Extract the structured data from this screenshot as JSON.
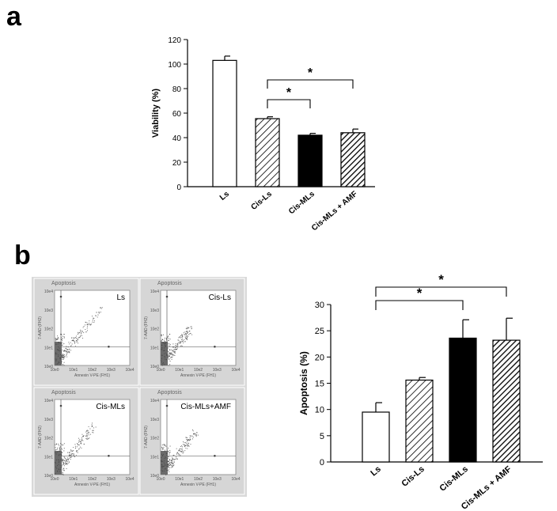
{
  "panel_labels": {
    "a": "a",
    "b": "b"
  },
  "colors": {
    "axis": "#000000",
    "facs_background": "#d9d9d9",
    "facs_frame": "#ffffff",
    "dots": "#555555"
  },
  "chart_data": [
    {
      "id": "viability",
      "type": "bar",
      "categories": [
        "Ls",
        "Cis-Ls",
        "Cis-MLs",
        "Cis-MLs + AMF"
      ],
      "values": [
        103,
        55.5,
        42,
        44
      ],
      "errors": [
        3.5,
        1.5,
        1.5,
        3
      ],
      "fills": [
        "white",
        "hatch",
        "black",
        "hatch-dense"
      ],
      "ylabel": "Viability (%)",
      "ylim": [
        0,
        120
      ],
      "yticks": [
        0,
        20,
        40,
        60,
        80,
        100,
        120
      ],
      "significance": [
        {
          "from": 1,
          "to": 2,
          "label": "*"
        },
        {
          "from": 1,
          "to": 3,
          "label": "*"
        }
      ]
    },
    {
      "id": "apoptosis",
      "type": "bar",
      "categories": [
        "Ls",
        "Cis-Ls",
        "Cis-MLs",
        "Cis-MLs + AMF"
      ],
      "values": [
        9.5,
        15.6,
        23.6,
        23.2
      ],
      "errors": [
        1.8,
        0.5,
        3.5,
        4.2
      ],
      "fills": [
        "white",
        "hatch",
        "black",
        "hatch-dense"
      ],
      "ylabel": "Apoptosis (%)",
      "ylim": [
        0,
        30
      ],
      "yticks": [
        0,
        5,
        10,
        15,
        20,
        25,
        30
      ],
      "significance": [
        {
          "from": 0,
          "to": 2,
          "label": "*"
        },
        {
          "from": 0,
          "to": 3,
          "label": "*"
        }
      ]
    }
  ],
  "facs": {
    "title": "Apoptosis",
    "x_axis_label": "Annexin V-PE (FH1)",
    "y_axis_label": "7-AAD (FH2)",
    "x_ticks": [
      "10e0",
      "10e1",
      "10e2",
      "10e3",
      "10e4"
    ],
    "y_ticks": [
      "10e4",
      "10e3",
      "10e2",
      "10e1",
      "10e0"
    ],
    "plots": [
      {
        "label": "Ls"
      },
      {
        "label": "Cis-Ls"
      },
      {
        "label": "Cis-MLs"
      },
      {
        "label": "Cis-MLs+AMF"
      }
    ]
  }
}
